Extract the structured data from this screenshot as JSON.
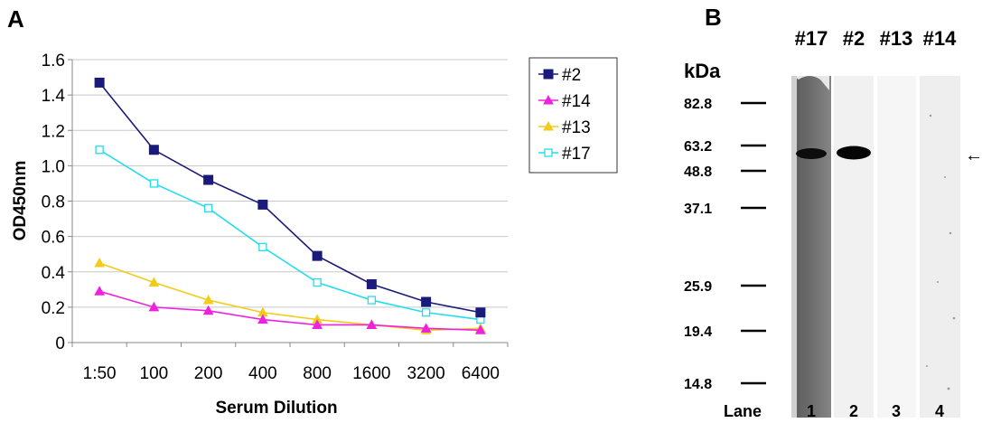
{
  "panels": {
    "a_letter": "A",
    "b_letter": "B"
  },
  "chart_data": {
    "type": "line",
    "title": "",
    "xlabel": "Serum Dilution",
    "ylabel": "OD450nm",
    "categories": [
      "1:50",
      "100",
      "200",
      "400",
      "800",
      "1600",
      "3200",
      "6400"
    ],
    "ylim": [
      0,
      1.6
    ],
    "yticks": [
      "0",
      "0.2",
      "0.4",
      "0.6",
      "0.8",
      "1.0",
      "1.2",
      "1.4",
      "1.6"
    ],
    "grid": true,
    "legend_position": "right",
    "series": [
      {
        "name": "#2",
        "color": "#1a1a7a",
        "marker": "square-filled",
        "values": [
          1.47,
          1.09,
          0.92,
          0.78,
          0.49,
          0.33,
          0.23,
          0.17
        ]
      },
      {
        "name": "#14",
        "color": "#ee22dd",
        "marker": "triangle-filled",
        "values": [
          0.29,
          0.2,
          0.18,
          0.13,
          0.1,
          0.1,
          0.08,
          0.07
        ]
      },
      {
        "name": "#13",
        "color": "#f2cc1a",
        "marker": "triangle-filled",
        "values": [
          0.45,
          0.34,
          0.24,
          0.17,
          0.13,
          0.1,
          0.07,
          0.08
        ]
      },
      {
        "name": "#17",
        "color": "#22ddee",
        "marker": "square-open",
        "values": [
          1.09,
          0.9,
          0.76,
          0.54,
          0.34,
          0.24,
          0.17,
          0.13
        ]
      }
    ]
  },
  "blot": {
    "kda_title": "kDa",
    "markers": [
      "82.8",
      "63.2",
      "48.8",
      "37.1",
      "25.9",
      "19.4",
      "14.8"
    ],
    "lane_headers": [
      "#17",
      "#2",
      "#13",
      "#14"
    ],
    "lane_label": "Lane",
    "lane_numbers": [
      "1",
      "2",
      "3",
      "4"
    ],
    "arrow": "←"
  }
}
